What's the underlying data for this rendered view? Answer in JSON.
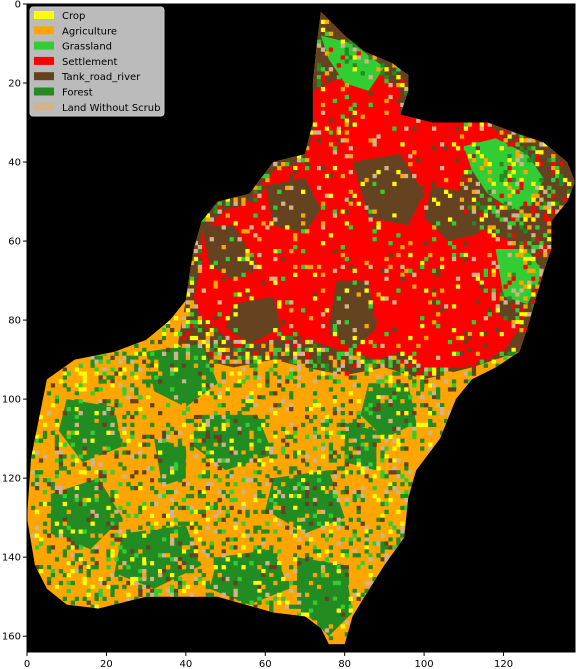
{
  "figure": {
    "background": "#000000"
  },
  "axes": {
    "x": {
      "range": [
        0,
        138
      ],
      "ticks": [
        0,
        20,
        40,
        60,
        80,
        100,
        120
      ]
    },
    "y": {
      "range": [
        0,
        164
      ],
      "ticks": [
        0,
        20,
        40,
        60,
        80,
        100,
        120,
        140,
        160
      ],
      "inverted": true
    }
  },
  "legend": {
    "placement": "top-left",
    "items": [
      {
        "label": "Crop",
        "color": "#ffff00"
      },
      {
        "label": "Agriculture",
        "color": "#ffa500"
      },
      {
        "label": "Grassland",
        "color": "#32cd32"
      },
      {
        "label": "Settlement",
        "color": "#ff0000"
      },
      {
        "label": "Tank_road_river",
        "color": "#654321"
      },
      {
        "label": "Forest",
        "color": "#228b22"
      },
      {
        "label": "Land Without Scrub",
        "color": "#d2b48c"
      }
    ]
  },
  "regions": {
    "outline": [
      [
        74,
        2
      ],
      [
        76,
        4
      ],
      [
        80,
        8
      ],
      [
        85,
        12
      ],
      [
        92,
        15
      ],
      [
        96,
        18
      ],
      [
        96,
        22
      ],
      [
        94,
        28
      ],
      [
        102,
        30
      ],
      [
        116,
        30
      ],
      [
        124,
        33
      ],
      [
        130,
        35
      ],
      [
        136,
        40
      ],
      [
        138,
        45
      ],
      [
        136,
        50
      ],
      [
        132,
        55
      ],
      [
        132,
        62
      ],
      [
        130,
        68
      ],
      [
        128,
        75
      ],
      [
        126,
        82
      ],
      [
        124,
        88
      ],
      [
        118,
        92
      ],
      [
        112,
        95
      ],
      [
        108,
        100
      ],
      [
        104,
        110
      ],
      [
        98,
        118
      ],
      [
        96,
        125
      ],
      [
        95,
        135
      ],
      [
        90,
        142
      ],
      [
        85,
        150
      ],
      [
        82,
        155
      ],
      [
        80,
        162
      ],
      [
        76,
        162
      ],
      [
        74,
        158
      ],
      [
        70,
        155
      ],
      [
        62,
        154
      ],
      [
        55,
        152
      ],
      [
        48,
        150
      ],
      [
        40,
        150
      ],
      [
        30,
        150
      ],
      [
        18,
        153
      ],
      [
        10,
        152
      ],
      [
        5,
        148
      ],
      [
        2,
        142
      ],
      [
        0,
        130
      ],
      [
        1,
        115
      ],
      [
        3,
        105
      ],
      [
        5,
        95
      ],
      [
        12,
        90
      ],
      [
        22,
        88
      ],
      [
        30,
        85
      ],
      [
        36,
        80
      ],
      [
        40,
        75
      ],
      [
        41,
        68
      ],
      [
        42,
        62
      ],
      [
        44,
        55
      ],
      [
        48,
        50
      ],
      [
        56,
        48
      ],
      [
        62,
        40
      ],
      [
        70,
        38
      ],
      [
        72,
        30
      ],
      [
        72,
        20
      ],
      [
        73,
        10
      ]
    ],
    "north": [
      [
        74,
        2
      ],
      [
        76,
        4
      ],
      [
        80,
        8
      ],
      [
        85,
        12
      ],
      [
        92,
        15
      ],
      [
        96,
        18
      ],
      [
        96,
        22
      ],
      [
        94,
        28
      ],
      [
        102,
        30
      ],
      [
        116,
        30
      ],
      [
        124,
        33
      ],
      [
        130,
        35
      ],
      [
        136,
        40
      ],
      [
        138,
        45
      ],
      [
        136,
        50
      ],
      [
        132,
        55
      ],
      [
        132,
        62
      ],
      [
        130,
        68
      ],
      [
        128,
        75
      ],
      [
        126,
        82
      ],
      [
        124,
        88
      ],
      [
        112,
        92
      ],
      [
        100,
        95
      ],
      [
        90,
        92
      ],
      [
        80,
        94
      ],
      [
        70,
        92
      ],
      [
        62,
        90
      ],
      [
        52,
        92
      ],
      [
        44,
        90
      ],
      [
        38,
        86
      ],
      [
        40,
        75
      ],
      [
        41,
        68
      ],
      [
        42,
        62
      ],
      [
        44,
        55
      ],
      [
        48,
        50
      ],
      [
        56,
        48
      ],
      [
        62,
        40
      ],
      [
        70,
        38
      ],
      [
        72,
        30
      ],
      [
        72,
        20
      ],
      [
        73,
        10
      ]
    ],
    "red_core": [
      [
        72,
        22
      ],
      [
        80,
        18
      ],
      [
        90,
        18
      ],
      [
        94,
        22
      ],
      [
        94,
        28
      ],
      [
        102,
        30
      ],
      [
        116,
        30
      ],
      [
        120,
        34
      ],
      [
        118,
        40
      ],
      [
        110,
        42
      ],
      [
        108,
        50
      ],
      [
        112,
        56
      ],
      [
        122,
        60
      ],
      [
        124,
        66
      ],
      [
        120,
        72
      ],
      [
        118,
        78
      ],
      [
        124,
        82
      ],
      [
        120,
        88
      ],
      [
        110,
        92
      ],
      [
        100,
        92
      ],
      [
        94,
        88
      ],
      [
        88,
        90
      ],
      [
        80,
        88
      ],
      [
        74,
        86
      ],
      [
        66,
        84
      ],
      [
        58,
        86
      ],
      [
        50,
        84
      ],
      [
        44,
        80
      ],
      [
        42,
        74
      ],
      [
        44,
        66
      ],
      [
        44,
        58
      ],
      [
        50,
        52
      ],
      [
        58,
        50
      ],
      [
        62,
        42
      ],
      [
        70,
        40
      ],
      [
        72,
        32
      ]
    ],
    "green_ne": [
      [
        110,
        36
      ],
      [
        118,
        34
      ],
      [
        126,
        38
      ],
      [
        130,
        44
      ],
      [
        128,
        50
      ],
      [
        122,
        52
      ],
      [
        116,
        48
      ],
      [
        112,
        42
      ]
    ],
    "green_e": [
      [
        118,
        62
      ],
      [
        126,
        62
      ],
      [
        130,
        68
      ],
      [
        126,
        76
      ],
      [
        120,
        74
      ]
    ],
    "green_top": [
      [
        74,
        8
      ],
      [
        82,
        10
      ],
      [
        90,
        16
      ],
      [
        86,
        22
      ],
      [
        80,
        20
      ],
      [
        76,
        14
      ]
    ],
    "brown_bands": [
      [
        [
          44,
          56
        ],
        [
          52,
          56
        ],
        [
          58,
          66
        ],
        [
          52,
          70
        ],
        [
          46,
          66
        ]
      ],
      [
        [
          60,
          46
        ],
        [
          70,
          44
        ],
        [
          74,
          52
        ],
        [
          70,
          58
        ],
        [
          62,
          56
        ]
      ],
      [
        [
          82,
          40
        ],
        [
          94,
          38
        ],
        [
          100,
          48
        ],
        [
          96,
          56
        ],
        [
          86,
          54
        ]
      ],
      [
        [
          102,
          46
        ],
        [
          112,
          48
        ],
        [
          114,
          58
        ],
        [
          106,
          60
        ],
        [
          100,
          54
        ]
      ],
      [
        [
          78,
          70
        ],
        [
          86,
          70
        ],
        [
          88,
          82
        ],
        [
          82,
          88
        ],
        [
          76,
          82
        ]
      ],
      [
        [
          52,
          76
        ],
        [
          62,
          74
        ],
        [
          64,
          82
        ],
        [
          56,
          86
        ],
        [
          50,
          82
        ]
      ],
      [
        [
          36,
          80
        ],
        [
          46,
          80
        ],
        [
          48,
          86
        ],
        [
          40,
          88
        ],
        [
          34,
          86
        ]
      ]
    ],
    "forest_patches": [
      [
        [
          30,
          88
        ],
        [
          44,
          86
        ],
        [
          48,
          96
        ],
        [
          40,
          102
        ],
        [
          32,
          98
        ]
      ],
      [
        [
          10,
          100
        ],
        [
          22,
          102
        ],
        [
          24,
          112
        ],
        [
          14,
          116
        ],
        [
          8,
          108
        ]
      ],
      [
        [
          6,
          124
        ],
        [
          18,
          120
        ],
        [
          24,
          130
        ],
        [
          16,
          138
        ],
        [
          6,
          134
        ]
      ],
      [
        [
          24,
          134
        ],
        [
          40,
          132
        ],
        [
          44,
          142
        ],
        [
          32,
          148
        ],
        [
          22,
          144
        ]
      ],
      [
        [
          44,
          104
        ],
        [
          58,
          104
        ],
        [
          62,
          114
        ],
        [
          50,
          118
        ],
        [
          42,
          112
        ]
      ],
      [
        [
          62,
          120
        ],
        [
          76,
          118
        ],
        [
          80,
          130
        ],
        [
          70,
          134
        ],
        [
          60,
          128
        ]
      ],
      [
        [
          48,
          140
        ],
        [
          62,
          138
        ],
        [
          66,
          148
        ],
        [
          56,
          152
        ],
        [
          46,
          148
        ]
      ],
      [
        [
          68,
          140
        ],
        [
          80,
          142
        ],
        [
          82,
          154
        ],
        [
          76,
          160
        ],
        [
          68,
          152
        ]
      ],
      [
        [
          86,
          96
        ],
        [
          96,
          96
        ],
        [
          98,
          106
        ],
        [
          90,
          110
        ],
        [
          84,
          104
        ]
      ],
      [
        [
          32,
          110
        ],
        [
          40,
          112
        ],
        [
          40,
          120
        ],
        [
          34,
          122
        ]
      ],
      [
        [
          80,
          106
        ],
        [
          88,
          108
        ],
        [
          88,
          118
        ],
        [
          80,
          116
        ]
      ]
    ]
  },
  "chart_data": {
    "type": "heatmap",
    "title": "",
    "xlabel": "",
    "ylabel": "",
    "xlim": [
      0,
      138
    ],
    "ylim": [
      164,
      0
    ],
    "grid": false,
    "legend_placement": "top-left",
    "categories": [
      "Crop",
      "Agriculture",
      "Grassland",
      "Settlement",
      "Tank_road_river",
      "Forest",
      "Land Without Scrub"
    ],
    "colors": [
      "#ffff00",
      "#ffa500",
      "#32cd32",
      "#ff0000",
      "#654321",
      "#228b22",
      "#d2b48c"
    ]
  }
}
